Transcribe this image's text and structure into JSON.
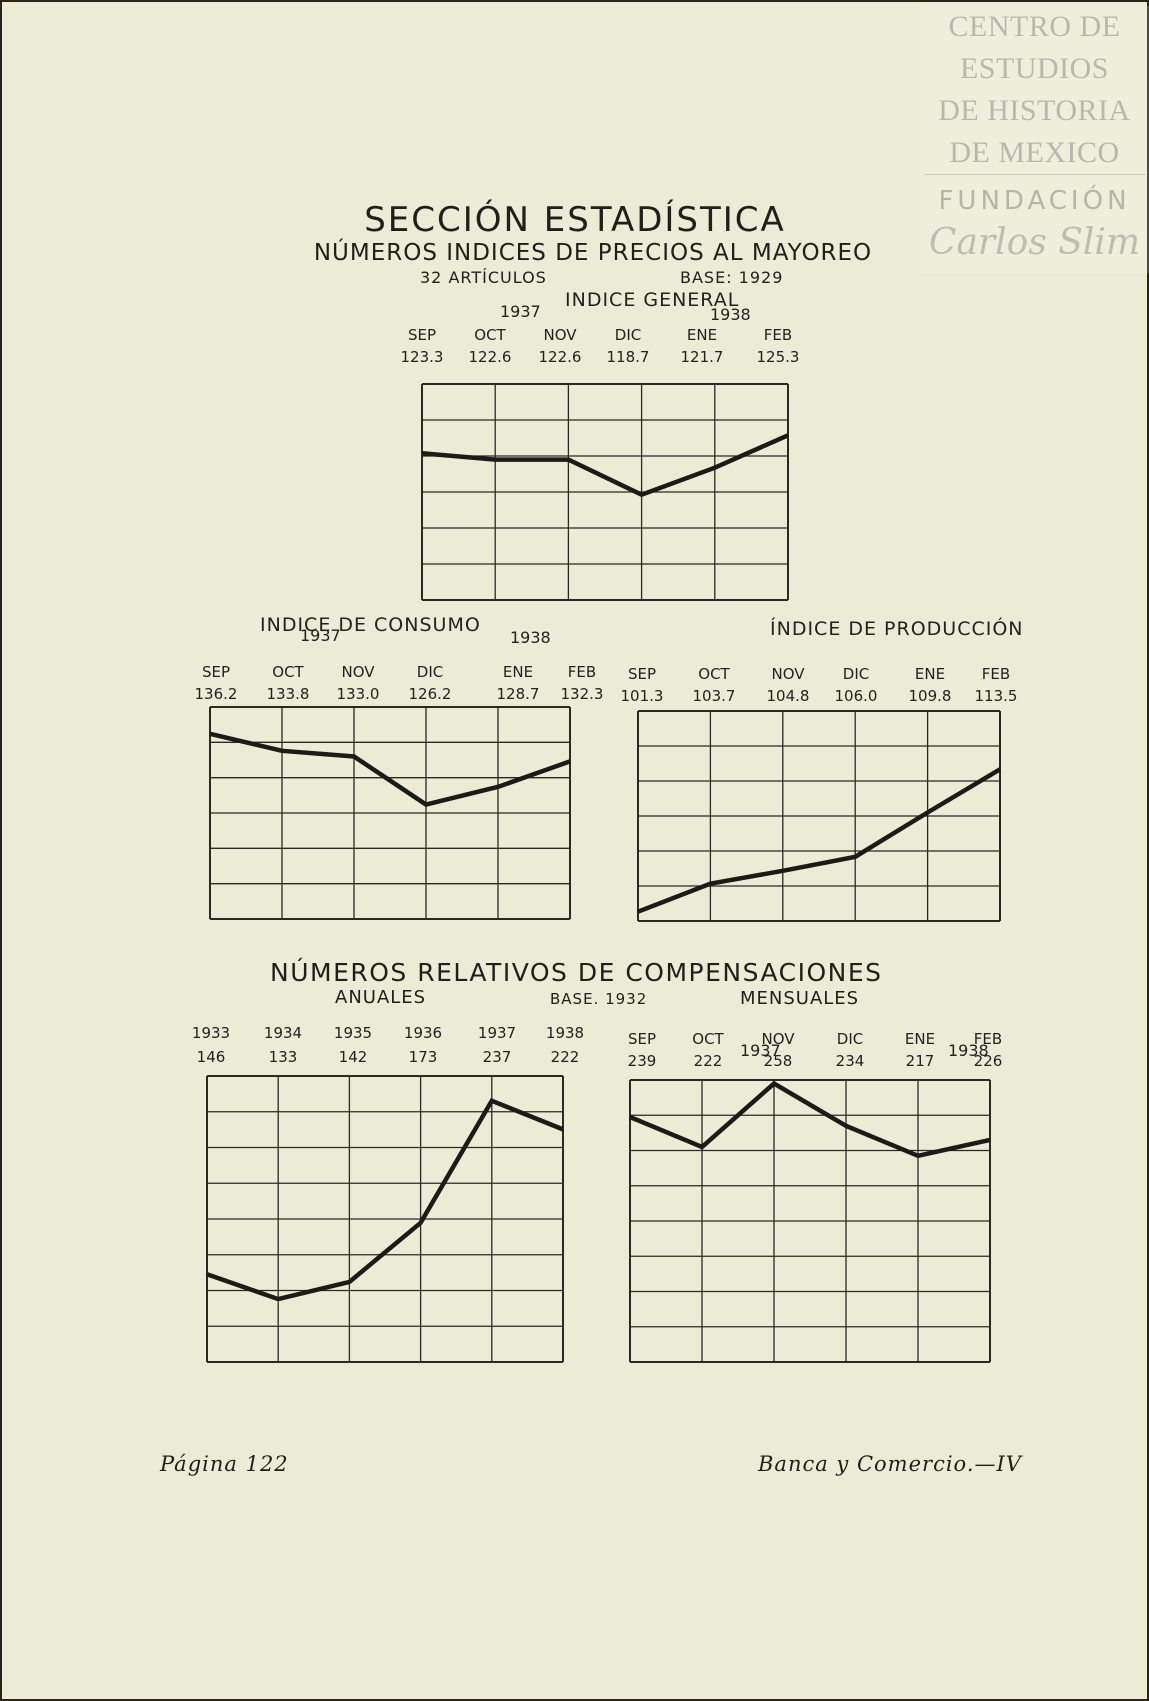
{
  "watermark": {
    "lines": [
      "CENTRO DE",
      "ESTUDIOS",
      "DE HISTORIA",
      "DE MEXICO"
    ],
    "fundacion": "FUNDACIÓN",
    "signature": "Carlos Slim"
  },
  "header": {
    "title": "SECCIÓN ESTADÍSTICA",
    "subtitle": "NÚMEROS INDICES DE PRECIOS AL MAYOREO",
    "articles": "32 ARTÍCULOS",
    "base": "BASE: 1929"
  },
  "section2": {
    "title": "NÚMEROS RELATIVOS DE COMPENSACIONES",
    "anuales": "ANUALES",
    "base": "BASE. 1932",
    "mensuales": "MENSUALES"
  },
  "footer": {
    "page": "Página 122",
    "publication": "Banca y Comercio.—IV"
  },
  "chart_data": [
    {
      "type": "line",
      "title": "INDICE GENERAL",
      "year_labels": [
        "1937",
        "1938"
      ],
      "categories": [
        "SEP",
        "OCT",
        "NOV",
        "DIC",
        "ENE",
        "FEB"
      ],
      "value_labels": [
        "123.3",
        "122.6",
        "122.6",
        "118.7",
        "121.7",
        "125.3"
      ],
      "values": [
        123.3,
        122.6,
        122.6,
        118.7,
        121.7,
        125.3
      ],
      "ylim": [
        107,
        131
      ],
      "rows": 6,
      "grid": true
    },
    {
      "type": "line",
      "title": "INDICE DE CONSUMO",
      "year_labels": [
        "1937",
        "1938"
      ],
      "categories": [
        "SEP",
        "OCT",
        "NOV",
        "DIC",
        "ENE",
        "FEB"
      ],
      "value_labels": [
        "136.2",
        "133.8",
        "133.0",
        "126.2",
        "128.7",
        "132.3"
      ],
      "values": [
        136.2,
        133.8,
        133.0,
        126.2,
        128.7,
        132.3
      ],
      "ylim": [
        110,
        140
      ],
      "rows": 6,
      "grid": true
    },
    {
      "type": "line",
      "title": "ÍNDICE DE PRODUCCIÓN",
      "year_labels": [],
      "categories": [
        "SEP",
        "OCT",
        "NOV",
        "DIC",
        "ENE",
        "FEB"
      ],
      "value_labels": [
        "101.3",
        "103.7",
        "104.8",
        "106.0",
        "109.8",
        "113.5"
      ],
      "values": [
        101.3,
        103.7,
        104.8,
        106.0,
        109.8,
        113.5
      ],
      "ylim": [
        100.5,
        118.5
      ],
      "rows": 6,
      "grid": true
    },
    {
      "type": "line",
      "title": "",
      "year_labels": [],
      "categories": [
        "1933",
        "1934",
        "1935",
        "1936",
        "1937",
        "1938"
      ],
      "value_labels": [
        "146",
        "133",
        "142",
        "173",
        "237",
        "222"
      ],
      "values": [
        146,
        133,
        142,
        173,
        237,
        222
      ],
      "ylim": [
        100,
        250
      ],
      "rows": 8,
      "grid": true
    },
    {
      "type": "line",
      "title": "",
      "year_labels": [
        "1937",
        "1938"
      ],
      "categories": [
        "SEP",
        "OCT",
        "NOV",
        "DIC",
        "ENE",
        "FEB"
      ],
      "value_labels": [
        "239",
        "222",
        "258",
        "234",
        "217",
        "226"
      ],
      "values": [
        239,
        222,
        258,
        234,
        217,
        226
      ],
      "ylim": [
        100,
        260
      ],
      "rows": 8,
      "grid": true
    }
  ]
}
